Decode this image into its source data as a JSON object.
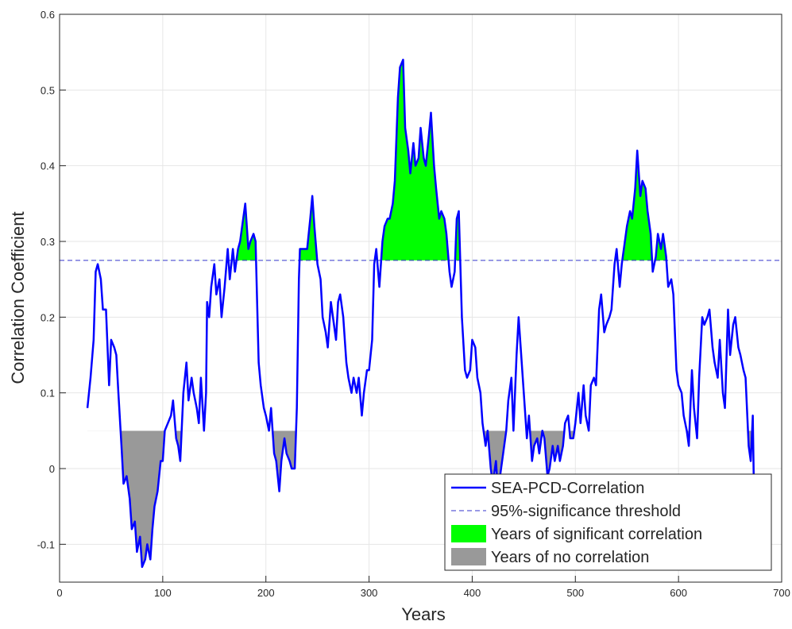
{
  "chart_data": {
    "type": "line",
    "xlabel": "Years",
    "ylabel": "Correlation Coefficient",
    "xlim": [
      0,
      700
    ],
    "ylim": [
      -0.15,
      0.6
    ],
    "xticks": [
      0,
      100,
      200,
      300,
      400,
      500,
      600,
      700
    ],
    "yticks": [
      -0.1,
      0,
      0.1,
      0.2,
      0.3,
      0.4,
      0.5,
      0.6
    ],
    "grid": true,
    "legend": "lower right",
    "x": [
      27,
      30,
      33,
      35,
      37,
      40,
      42,
      45,
      48,
      50,
      53,
      55,
      57,
      60,
      62,
      65,
      68,
      70,
      73,
      75,
      78,
      80,
      83,
      85,
      88,
      90,
      92,
      95,
      98,
      100,
      102,
      105,
      108,
      110,
      113,
      115,
      117,
      120,
      123,
      125,
      128,
      130,
      133,
      135,
      137,
      140,
      142,
      143,
      145,
      147,
      150,
      152,
      155,
      157,
      160,
      163,
      165,
      168,
      170,
      173,
      175,
      178,
      180,
      183,
      185,
      188,
      190,
      193,
      195,
      198,
      200,
      203,
      205,
      208,
      210,
      213,
      215,
      218,
      220,
      223,
      225,
      228,
      230,
      232,
      233,
      238,
      240,
      243,
      245,
      247,
      250,
      253,
      255,
      258,
      260,
      263,
      265,
      268,
      270,
      272,
      275,
      278,
      280,
      283,
      285,
      288,
      290,
      293,
      295,
      298,
      300,
      303,
      305,
      307,
      310,
      313,
      315,
      318,
      320,
      323,
      325,
      328,
      330,
      333,
      335,
      338,
      340,
      343,
      345,
      348,
      350,
      353,
      355,
      358,
      360,
      363,
      365,
      368,
      370,
      373,
      375,
      378,
      380,
      383,
      385,
      387,
      390,
      393,
      395,
      398,
      400,
      403,
      405,
      408,
      410,
      413,
      415,
      418,
      420,
      423,
      425,
      428,
      430,
      433,
      435,
      438,
      440,
      443,
      445,
      448,
      450,
      453,
      455,
      458,
      460,
      463,
      465,
      468,
      470,
      473,
      475,
      478,
      480,
      483,
      485,
      488,
      490,
      493,
      495,
      498,
      500,
      503,
      505,
      508,
      510,
      513,
      515,
      518,
      520,
      523,
      525,
      528,
      530,
      533,
      535,
      538,
      540,
      543,
      545,
      548,
      550,
      553,
      555,
      558,
      560,
      563,
      565,
      568,
      570,
      573,
      575,
      578,
      580,
      583,
      585,
      588,
      590,
      593,
      595,
      598,
      600,
      603,
      605,
      608,
      610,
      613,
      615,
      618,
      620,
      623,
      625,
      628,
      630,
      633,
      635,
      638,
      640,
      643,
      645,
      648,
      650,
      653,
      655,
      658,
      660,
      663,
      665,
      668,
      670,
      672,
      673
    ],
    "series": [
      {
        "name": "SEA-PCD-Correlation",
        "color": "#0000ff",
        "values": [
          0.08,
          0.12,
          0.17,
          0.26,
          0.27,
          0.25,
          0.21,
          0.21,
          0.11,
          0.17,
          0.16,
          0.15,
          0.1,
          0.03,
          -0.02,
          -0.01,
          -0.04,
          -0.08,
          -0.07,
          -0.11,
          -0.09,
          -0.13,
          -0.12,
          -0.1,
          -0.12,
          -0.08,
          -0.05,
          -0.03,
          0.01,
          0.01,
          0.05,
          0.06,
          0.07,
          0.09,
          0.04,
          0.03,
          0.01,
          0.1,
          0.14,
          0.09,
          0.12,
          0.1,
          0.08,
          0.06,
          0.12,
          0.05,
          0.1,
          0.22,
          0.2,
          0.24,
          0.27,
          0.23,
          0.25,
          0.2,
          0.24,
          0.29,
          0.25,
          0.29,
          0.26,
          0.29,
          0.3,
          0.33,
          0.35,
          0.29,
          0.3,
          0.31,
          0.3,
          0.14,
          0.11,
          0.08,
          0.07,
          0.05,
          0.08,
          0.02,
          0.01,
          -0.03,
          0.01,
          0.04,
          0.02,
          0.01,
          0,
          0,
          0.08,
          0.25,
          0.29,
          0.29,
          0.29,
          0.33,
          0.36,
          0.32,
          0.27,
          0.25,
          0.2,
          0.18,
          0.16,
          0.22,
          0.2,
          0.17,
          0.22,
          0.23,
          0.2,
          0.14,
          0.12,
          0.1,
          0.12,
          0.1,
          0.12,
          0.07,
          0.1,
          0.13,
          0.13,
          0.17,
          0.27,
          0.29,
          0.24,
          0.3,
          0.32,
          0.33,
          0.33,
          0.35,
          0.38,
          0.49,
          0.53,
          0.54,
          0.45,
          0.42,
          0.39,
          0.43,
          0.4,
          0.41,
          0.45,
          0.41,
          0.4,
          0.44,
          0.47,
          0.4,
          0.37,
          0.33,
          0.34,
          0.33,
          0.31,
          0.26,
          0.24,
          0.26,
          0.33,
          0.34,
          0.2,
          0.13,
          0.12,
          0.13,
          0.17,
          0.16,
          0.12,
          0.1,
          0.06,
          0.03,
          0.05,
          0,
          -0.02,
          0.01,
          -0.03,
          0,
          0.02,
          0.05,
          0.09,
          0.12,
          0.05,
          0.15,
          0.2,
          0.14,
          0.1,
          0.04,
          0.07,
          0.01,
          0.03,
          0.04,
          0.02,
          0.05,
          0.04,
          -0.01,
          0,
          0.03,
          0.01,
          0.03,
          0.01,
          0.03,
          0.06,
          0.07,
          0.04,
          0.04,
          0.06,
          0.1,
          0.06,
          0.11,
          0.07,
          0.05,
          0.11,
          0.12,
          0.11,
          0.21,
          0.23,
          0.18,
          0.19,
          0.2,
          0.21,
          0.27,
          0.29,
          0.24,
          0.27,
          0.3,
          0.32,
          0.34,
          0.33,
          0.37,
          0.42,
          0.36,
          0.38,
          0.37,
          0.34,
          0.31,
          0.26,
          0.28,
          0.31,
          0.29,
          0.31,
          0.28,
          0.24,
          0.25,
          0.23,
          0.13,
          0.11,
          0.1,
          0.07,
          0.05,
          0.03,
          0.13,
          0.08,
          0.04,
          0.12,
          0.2,
          0.19,
          0.2,
          0.21,
          0.16,
          0.14,
          0.12,
          0.17,
          0.1,
          0.08,
          0.21,
          0.15,
          0.19,
          0.2,
          0.16,
          0.15,
          0.13,
          0.12,
          0.03,
          0.01,
          0.07,
          -0.02
        ]
      }
    ],
    "threshold": {
      "name": "95%-significance threshold",
      "color": "#3333cc",
      "value": 0.275
    },
    "fills": [
      {
        "name": "Years of significant correlation",
        "color": "#00ff00",
        "side": "above",
        "level": 0.275
      },
      {
        "name": "Years of no correlation",
        "color": "#999999",
        "side": "below",
        "level": 0.05
      }
    ]
  }
}
